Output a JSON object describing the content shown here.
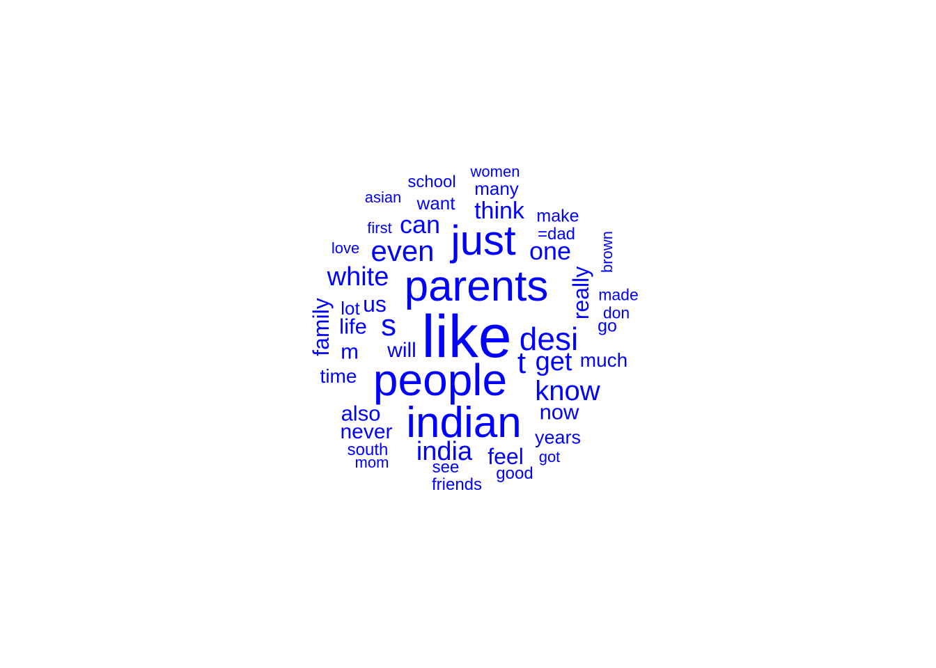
{
  "word_cloud": {
    "color": "#0000ff",
    "words": [
      {
        "text": "like",
        "weight": 1.0,
        "orientation": "horizontal"
      },
      {
        "text": "people",
        "weight": 0.86,
        "orientation": "horizontal"
      },
      {
        "text": "parents",
        "weight": 0.84,
        "orientation": "horizontal"
      },
      {
        "text": "indian",
        "weight": 0.83,
        "orientation": "horizontal"
      },
      {
        "text": "just",
        "weight": 0.78,
        "orientation": "horizontal"
      },
      {
        "text": "desi",
        "weight": 0.55,
        "orientation": "horizontal"
      },
      {
        "text": "s",
        "weight": 0.52,
        "orientation": "horizontal"
      },
      {
        "text": "t",
        "weight": 0.52,
        "orientation": "horizontal"
      },
      {
        "text": "even",
        "weight": 0.5,
        "orientation": "horizontal"
      },
      {
        "text": "know",
        "weight": 0.47,
        "orientation": "horizontal"
      },
      {
        "text": "india",
        "weight": 0.44,
        "orientation": "horizontal"
      },
      {
        "text": "white",
        "weight": 0.44,
        "orientation": "horizontal"
      },
      {
        "text": "get",
        "weight": 0.44,
        "orientation": "horizontal"
      },
      {
        "text": "one",
        "weight": 0.43,
        "orientation": "horizontal"
      },
      {
        "text": "can",
        "weight": 0.42,
        "orientation": "horizontal"
      },
      {
        "text": "think",
        "weight": 0.4,
        "orientation": "horizontal"
      },
      {
        "text": "really",
        "weight": 0.39,
        "orientation": "vertical"
      },
      {
        "text": "family",
        "weight": 0.38,
        "orientation": "vertical"
      },
      {
        "text": "us",
        "weight": 0.38,
        "orientation": "horizontal"
      },
      {
        "text": "feel",
        "weight": 0.38,
        "orientation": "horizontal"
      },
      {
        "text": "now",
        "weight": 0.37,
        "orientation": "horizontal"
      },
      {
        "text": "also",
        "weight": 0.36,
        "orientation": "horizontal"
      },
      {
        "text": "life",
        "weight": 0.36,
        "orientation": "horizontal"
      },
      {
        "text": "m",
        "weight": 0.36,
        "orientation": "horizontal"
      },
      {
        "text": "will",
        "weight": 0.35,
        "orientation": "horizontal"
      },
      {
        "text": "never",
        "weight": 0.35,
        "orientation": "horizontal"
      },
      {
        "text": "time",
        "weight": 0.33,
        "orientation": "horizontal"
      },
      {
        "text": "much",
        "weight": 0.33,
        "orientation": "horizontal"
      },
      {
        "text": "years",
        "weight": 0.32,
        "orientation": "horizontal"
      },
      {
        "text": "lot",
        "weight": 0.31,
        "orientation": "horizontal"
      },
      {
        "text": "many",
        "weight": 0.3,
        "orientation": "horizontal"
      },
      {
        "text": "want",
        "weight": 0.3,
        "orientation": "horizontal"
      },
      {
        "text": "make",
        "weight": 0.29,
        "orientation": "horizontal"
      },
      {
        "text": "go",
        "weight": 0.29,
        "orientation": "horizontal"
      },
      {
        "text": "see",
        "weight": 0.28,
        "orientation": "horizontal"
      },
      {
        "text": "=dad",
        "weight": 0.27,
        "orientation": "horizontal"
      },
      {
        "text": "good",
        "weight": 0.27,
        "orientation": "horizontal"
      },
      {
        "text": "south",
        "weight": 0.27,
        "orientation": "horizontal"
      },
      {
        "text": "friends",
        "weight": 0.27,
        "orientation": "horizontal"
      },
      {
        "text": "school",
        "weight": 0.27,
        "orientation": "horizontal"
      },
      {
        "text": "made",
        "weight": 0.26,
        "orientation": "horizontal"
      },
      {
        "text": "don",
        "weight": 0.26,
        "orientation": "horizontal"
      },
      {
        "text": "brown",
        "weight": 0.26,
        "orientation": "vertical"
      },
      {
        "text": "women",
        "weight": 0.25,
        "orientation": "horizontal"
      },
      {
        "text": "first",
        "weight": 0.25,
        "orientation": "horizontal"
      },
      {
        "text": "mom",
        "weight": 0.25,
        "orientation": "horizontal"
      },
      {
        "text": "asian",
        "weight": 0.25,
        "orientation": "horizontal"
      },
      {
        "text": "got",
        "weight": 0.24,
        "orientation": "horizontal"
      },
      {
        "text": "love",
        "weight": 0.24,
        "orientation": "horizontal"
      }
    ]
  }
}
